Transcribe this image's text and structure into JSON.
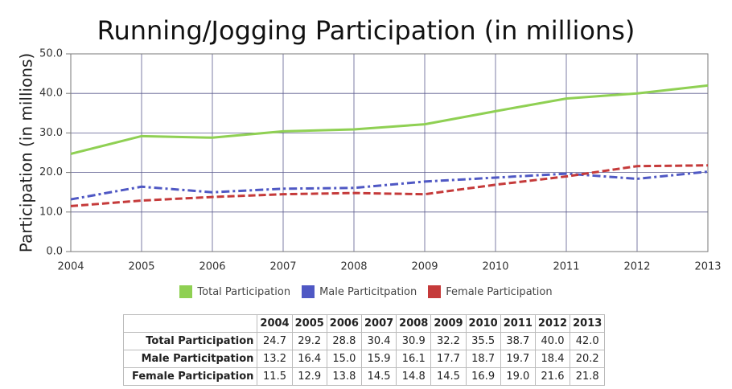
{
  "chart_data": {
    "type": "line",
    "title": "Running/Jogging Participation (in millions)",
    "y_label": "Participation (in millions)",
    "x": [
      2004,
      2005,
      2006,
      2007,
      2008,
      2009,
      2010,
      2011,
      2012,
      2013
    ],
    "xlim": [
      2004,
      2013
    ],
    "xticks": [
      2004,
      2005,
      2006,
      2007,
      2008,
      2009,
      2010,
      2011,
      2012,
      2013
    ],
    "ylim": [
      0,
      50
    ],
    "yticks": [
      {
        "value": 0,
        "label": "0.0"
      },
      {
        "value": 10,
        "label": "10.0"
      },
      {
        "value": 20,
        "label": "20.0"
      },
      {
        "value": 30,
        "label": "30.0"
      },
      {
        "value": 40,
        "label": "40.0"
      },
      {
        "value": 50,
        "label": "50.0"
      }
    ],
    "grid": true,
    "legend": "bottom",
    "series": [
      {
        "name": "Total Participation",
        "color": "#8fd053",
        "line_style": "solid",
        "values": [
          24.7,
          29.2,
          28.8,
          30.4,
          30.9,
          32.2,
          35.5,
          38.7,
          40.0,
          42.0
        ],
        "value_labels": [
          "24.7",
          "29.2",
          "28.8",
          "30.4",
          "30.9",
          "32.2",
          "35.5",
          "38.7",
          "40.0",
          "42.0"
        ]
      },
      {
        "name": "Male Particitpation",
        "color": "#4f58c4",
        "line_style": "dashdot",
        "values": [
          13.2,
          16.4,
          15.0,
          15.9,
          16.1,
          17.7,
          18.7,
          19.7,
          18.4,
          20.2
        ],
        "value_labels": [
          "13.2",
          "16.4",
          "15.0",
          "15.9",
          "16.1",
          "17.7",
          "18.7",
          "19.7",
          "18.4",
          "20.2"
        ]
      },
      {
        "name": "Female Participation",
        "color": "#c53a3a",
        "line_style": "dash",
        "values": [
          11.5,
          12.9,
          13.8,
          14.5,
          14.8,
          14.5,
          16.9,
          19.0,
          21.6,
          21.8
        ],
        "value_labels": [
          "11.5",
          "12.9",
          "13.8",
          "14.5",
          "14.8",
          "14.5",
          "16.9",
          "19.0",
          "21.6",
          "21.8"
        ]
      }
    ]
  }
}
